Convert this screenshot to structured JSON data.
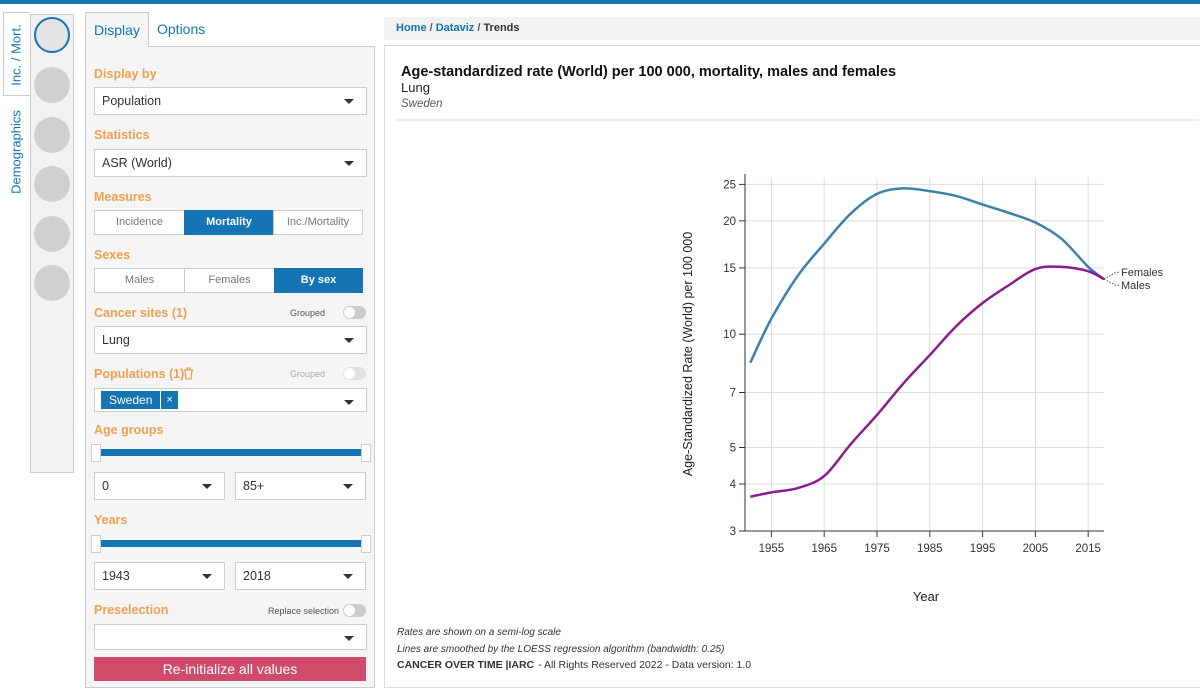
{
  "side_tabs": [
    "Inc. / Mort.",
    "Demographics"
  ],
  "panel": {
    "tabs": [
      "Display",
      "Options"
    ],
    "display_by": {
      "label": "Display by",
      "value": "Population"
    },
    "statistics": {
      "label": "Statistics",
      "value": "ASR (World)"
    },
    "measures": {
      "label": "Measures",
      "options": [
        "Incidence",
        "Mortality",
        "Inc./Mortality"
      ]
    },
    "sexes": {
      "label": "Sexes",
      "options": [
        "Males",
        "Females",
        "By sex"
      ]
    },
    "cancer_sites": {
      "label": "Cancer sites (1)",
      "toggle": "Grouped",
      "value": "Lung"
    },
    "populations": {
      "label": "Populations (1)",
      "toggle": "Grouped",
      "tag": "Sweden",
      "tag_remove": "×"
    },
    "age_groups": {
      "label": "Age groups",
      "from": "0",
      "to": "85+"
    },
    "years": {
      "label": "Years",
      "from": "1943",
      "to": "2018"
    },
    "preselection": {
      "label": "Preselection",
      "toggle": "Replace selection"
    },
    "reset": "Re-initialize all values"
  },
  "breadcrumb": [
    "Home",
    "Dataviz",
    "Trends"
  ],
  "chart_data": {
    "type": "line",
    "title": "Age-standardized rate (World) per 100 000, mortality, males and females",
    "subtitle": "Lung",
    "population": "Sweden",
    "ylabel": "Age-Standardized Rate (World) per 100 000",
    "xlabel": "Year",
    "x": [
      1951,
      1955,
      1960,
      1965,
      1970,
      1975,
      1980,
      1985,
      1990,
      1995,
      2000,
      2005,
      2010,
      2015,
      2018
    ],
    "series": [
      {
        "name": "Males",
        "color": "#3d80aa",
        "values": [
          8.4,
          11.0,
          14.3,
          17.4,
          20.9,
          23.6,
          24.4,
          24.0,
          23.3,
          22.1,
          21.0,
          19.8,
          17.9,
          15.1,
          14.0
        ]
      },
      {
        "name": "Females",
        "color": "#8c1c8c",
        "values": [
          3.7,
          3.8,
          3.9,
          4.2,
          5.1,
          6.1,
          7.4,
          8.8,
          10.5,
          12.1,
          13.5,
          14.9,
          15.1,
          14.7,
          14.0
        ]
      }
    ],
    "xlim": [
      1950,
      2018
    ],
    "xticks": [
      1955,
      1965,
      1975,
      1985,
      1995,
      2005,
      2015
    ],
    "ylim": [
      3,
      26
    ],
    "yticks": [
      3,
      4,
      5,
      7,
      10,
      15,
      20,
      25
    ],
    "log_y": true,
    "grid": true,
    "notes": [
      "Rates are shown on a semi-log scale",
      "Lines are smoothed by the LOESS regression algorithm (bandwidth: 0.25)"
    ],
    "footer_brand": "CANCER OVER TIME |IARC",
    "footer_text": "- All Rights Reserved 2022 - Data version: 1.0"
  }
}
